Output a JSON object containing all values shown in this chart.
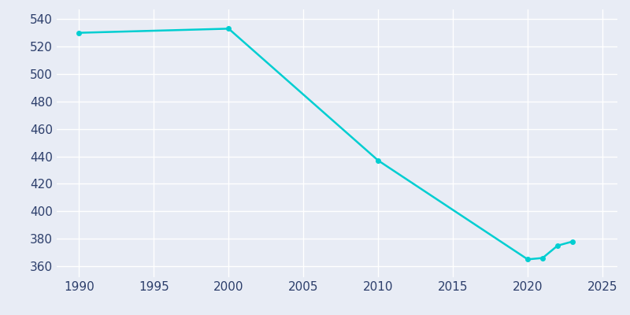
{
  "years": [
    1990,
    2000,
    2010,
    2020,
    2021,
    2022,
    2023
  ],
  "population": [
    530,
    533,
    437,
    365,
    366,
    375,
    378
  ],
  "line_color": "#00CED1",
  "marker_style": "o",
  "marker_size": 4,
  "background_color": "#e8ecf5",
  "grid_color": "#ffffff",
  "xlabel": "",
  "ylabel": "",
  "xlim": [
    1988.5,
    2026
  ],
  "ylim": [
    352,
    547
  ],
  "yticks": [
    360,
    380,
    400,
    420,
    440,
    460,
    480,
    500,
    520,
    540
  ],
  "xticks": [
    1990,
    1995,
    2000,
    2005,
    2010,
    2015,
    2020,
    2025
  ],
  "tick_color": "#2c3e6b",
  "tick_fontsize": 11,
  "line_width": 1.8
}
